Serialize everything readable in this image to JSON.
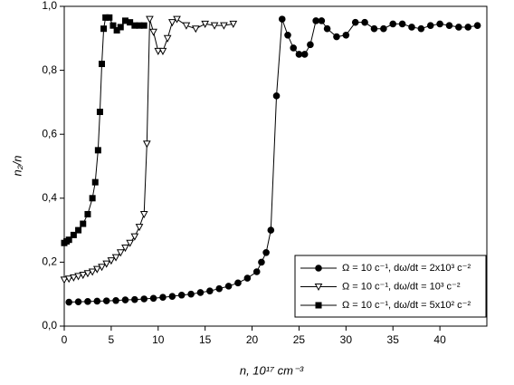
{
  "chart_data": {
    "type": "line",
    "xlabel": "n, 10¹⁷ cm⁻³",
    "ylabel": "n₂/n",
    "xlim": [
      0,
      45
    ],
    "ylim": [
      0,
      1
    ],
    "xticks": [
      0,
      5,
      10,
      15,
      20,
      25,
      30,
      35,
      40
    ],
    "yticks": [
      {
        "value": 0,
        "label": "0,0"
      },
      {
        "value": 0.2,
        "label": "0,2"
      },
      {
        "value": 0.4,
        "label": "0,4"
      },
      {
        "value": 0.6,
        "label": "0,6"
      },
      {
        "value": 0.8,
        "label": "0,8"
      },
      {
        "value": 1,
        "label": "1,0"
      }
    ],
    "legend": "lower right",
    "series": [
      {
        "name": "Ω = 10 c⁻¹, dω/dt = 2x10³ c⁻²",
        "color": "#000000",
        "marker": "circle",
        "marker_fill": "#000000",
        "x": [
          0.5,
          1.5,
          2.5,
          3.5,
          4.5,
          5.5,
          6.5,
          7.5,
          8.5,
          9.5,
          10.5,
          11.5,
          12.5,
          13.5,
          14.5,
          15.5,
          16.5,
          17.5,
          18.5,
          19.5,
          20.5,
          21,
          21.5,
          22,
          22.6,
          23.2,
          23.8,
          24.4,
          25,
          25.6,
          26.2,
          26.8,
          27.4,
          28,
          29,
          30,
          31,
          32,
          33,
          34,
          35,
          36,
          37,
          38,
          39,
          40,
          41,
          42,
          43,
          44
        ],
        "values": [
          0.075,
          0.076,
          0.077,
          0.078,
          0.079,
          0.08,
          0.082,
          0.083,
          0.085,
          0.087,
          0.09,
          0.093,
          0.097,
          0.1,
          0.105,
          0.11,
          0.117,
          0.125,
          0.135,
          0.15,
          0.17,
          0.2,
          0.23,
          0.3,
          0.72,
          0.96,
          0.91,
          0.87,
          0.85,
          0.85,
          0.88,
          0.955,
          0.955,
          0.93,
          0.905,
          0.91,
          0.95,
          0.95,
          0.93,
          0.93,
          0.945,
          0.945,
          0.935,
          0.93,
          0.94,
          0.945,
          0.94,
          0.935,
          0.935,
          0.94
        ]
      },
      {
        "name": "Ω = 10 c⁻¹, dω/dt = 10³ c⁻²",
        "color": "#000000",
        "marker": "triangle-down",
        "marker_fill": "#ffffff",
        "x": [
          0,
          0.5,
          1,
          1.5,
          2,
          2.5,
          3,
          3.5,
          4,
          4.5,
          5,
          5.5,
          6,
          6.5,
          7,
          7.5,
          8,
          8.5,
          8.8,
          9.1,
          9.5,
          10,
          10.5,
          11,
          11.5,
          12,
          13,
          14,
          15,
          16,
          17,
          18
        ],
        "values": [
          0.145,
          0.148,
          0.152,
          0.156,
          0.16,
          0.165,
          0.17,
          0.178,
          0.185,
          0.195,
          0.205,
          0.215,
          0.23,
          0.245,
          0.26,
          0.28,
          0.31,
          0.35,
          0.57,
          0.96,
          0.92,
          0.86,
          0.86,
          0.9,
          0.95,
          0.96,
          0.94,
          0.93,
          0.945,
          0.94,
          0.94,
          0.945
        ]
      },
      {
        "name": "Ω = 10 c⁻¹, dω/dt = 5x10² c⁻²",
        "color": "#000000",
        "marker": "square",
        "marker_fill": "#000000",
        "x": [
          0,
          0.25,
          0.5,
          1,
          1.5,
          2,
          2.5,
          3,
          3.3,
          3.6,
          3.8,
          4,
          4.2,
          4.4,
          4.8,
          5.2,
          5.6,
          6,
          6.5,
          7,
          7.5,
          8,
          8.5
        ],
        "values": [
          0.26,
          0.265,
          0.27,
          0.285,
          0.3,
          0.32,
          0.35,
          0.4,
          0.45,
          0.55,
          0.67,
          0.82,
          0.93,
          0.965,
          0.965,
          0.94,
          0.925,
          0.935,
          0.955,
          0.95,
          0.94,
          0.94,
          0.94
        ]
      }
    ]
  }
}
